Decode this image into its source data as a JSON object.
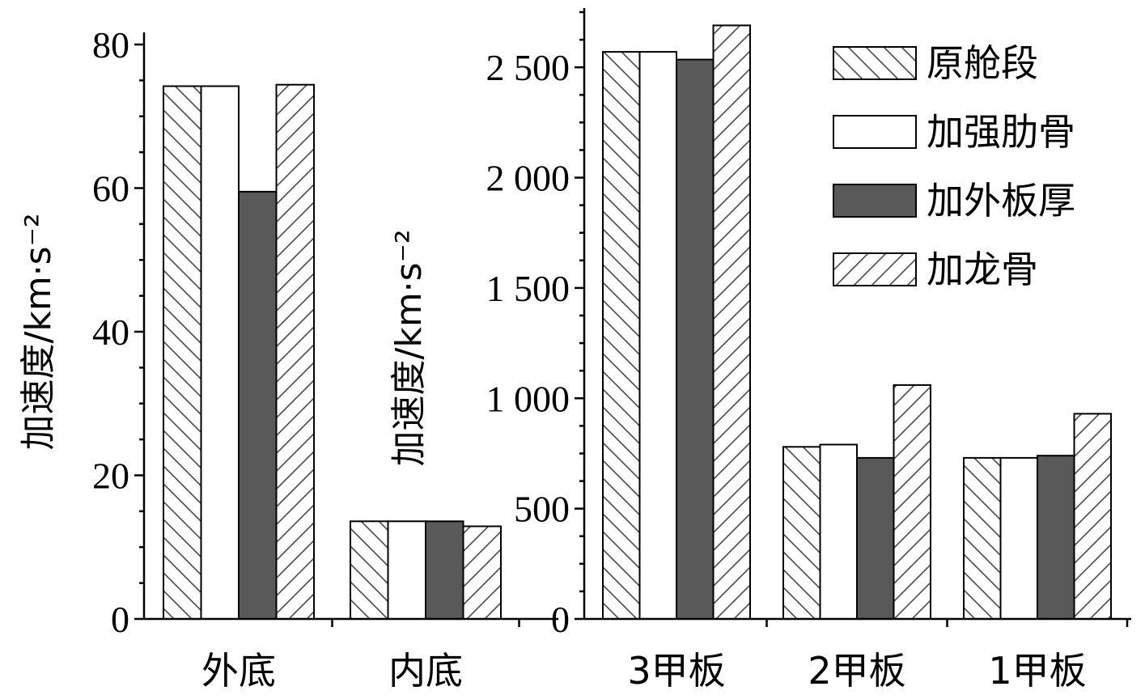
{
  "colors": {
    "axis": "#000000",
    "hatch": "#4a4a4a",
    "solid_fill": "#595959",
    "plain_fill": "#ffffff"
  },
  "legend": {
    "placement": "top-right",
    "entries": [
      "原舱段",
      "加强肋骨",
      "加外板厚",
      "加龙骨"
    ]
  },
  "chart_data": [
    {
      "type": "bar",
      "categories": [
        "外底",
        "内底"
      ],
      "series": [
        {
          "name": "原舱段",
          "pattern": "hatch-back",
          "values": [
            74.2,
            13.6
          ]
        },
        {
          "name": "加强肋骨",
          "pattern": "plain",
          "values": [
            74.2,
            13.6
          ]
        },
        {
          "name": "加外板厚",
          "pattern": "solid",
          "values": [
            59.5,
            13.6
          ]
        },
        {
          "name": "加龙骨",
          "pattern": "hatch-forward",
          "values": [
            74.4,
            12.9
          ]
        }
      ],
      "ylabel": "加速度/km·s⁻²",
      "ylim": [
        0,
        80
      ],
      "yticks": [
        0,
        20,
        40,
        60,
        80
      ],
      "ytick_labels": [
        "0",
        "20",
        "40",
        "60",
        "80"
      ],
      "grid": false
    },
    {
      "type": "bar",
      "categories": [
        "3甲板",
        "2甲板",
        "1甲板"
      ],
      "series": [
        {
          "name": "原舱段",
          "pattern": "hatch-back",
          "values": [
            2570,
            780,
            730
          ]
        },
        {
          "name": "加强肋骨",
          "pattern": "plain",
          "values": [
            2570,
            790,
            730
          ]
        },
        {
          "name": "加外板厚",
          "pattern": "solid",
          "values": [
            2535,
            730,
            740
          ]
        },
        {
          "name": "加龙骨",
          "pattern": "hatch-forward",
          "values": [
            2690,
            1060,
            930
          ]
        }
      ],
      "ylabel": "加速度/km·s⁻²",
      "ylim": [
        0,
        2750
      ],
      "yticks": [
        0,
        500,
        1000,
        1500,
        2000,
        2500
      ],
      "ytick_labels": [
        "0",
        "500",
        "1 000",
        "1 500",
        "2 000",
        "2 500"
      ],
      "grid": false
    }
  ]
}
